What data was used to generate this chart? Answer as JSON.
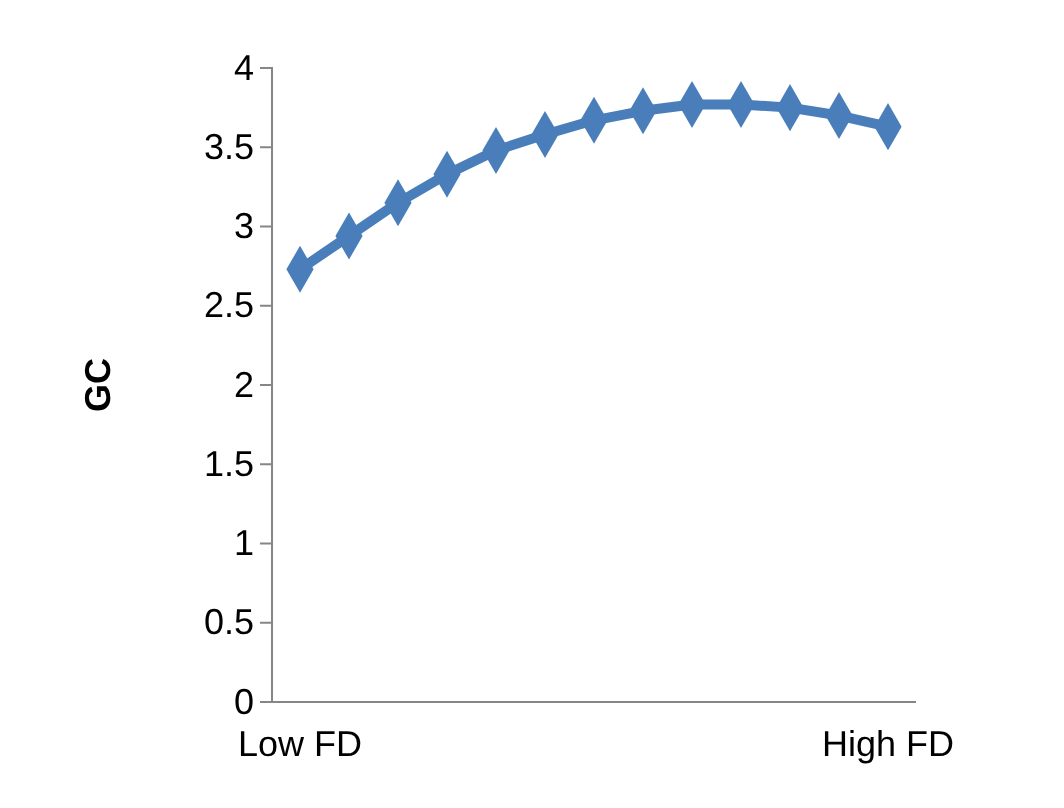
{
  "chart_data": {
    "type": "line",
    "ylabel": "GC",
    "categories": [
      "Low FD",
      null,
      null,
      null,
      null,
      null,
      null,
      null,
      null,
      null,
      null,
      null,
      "High FD"
    ],
    "series": [
      {
        "color": "#4a7ebb",
        "values": [
          2.73,
          2.94,
          3.15,
          3.33,
          3.48,
          3.58,
          3.67,
          3.73,
          3.77,
          3.77,
          3.75,
          3.7,
          3.63
        ]
      }
    ],
    "ylim": [
      0,
      4
    ],
    "yticks": [
      0,
      {
        "value": 0.5,
        "label": "0.5"
      },
      1,
      {
        "value": 1.5,
        "label": "1.5"
      },
      2,
      {
        "value": 2.5,
        "label": "2.5"
      },
      3,
      {
        "value": 3.5,
        "label": "3.5"
      },
      4
    ],
    "marker": "diamond",
    "line_style": "solid",
    "grid": false
  }
}
